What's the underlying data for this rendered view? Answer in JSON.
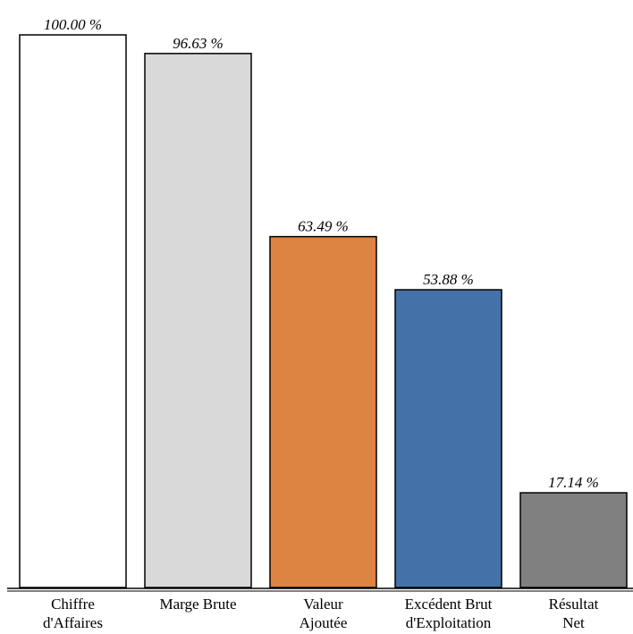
{
  "chart_data": {
    "type": "bar",
    "categories": [
      [
        "Chiffre",
        "d'Affaires"
      ],
      [
        "Marge Brute"
      ],
      [
        "Valeur",
        "Ajoutée"
      ],
      [
        "Excédent Brut",
        "d'Exploitation"
      ],
      [
        "Résultat",
        "Net"
      ]
    ],
    "values": [
      100.0,
      96.63,
      63.49,
      53.88,
      17.14
    ],
    "value_labels": [
      "100.00 %",
      "96.63 %",
      "63.49 %",
      "53.88 %",
      "17.14 %"
    ],
    "bar_colors": [
      "#ffffff",
      "#d9d9d9",
      "#dd8442",
      "#4472a8",
      "#808080"
    ],
    "ylim": [
      0,
      100
    ],
    "grid": false,
    "legend": "none"
  }
}
